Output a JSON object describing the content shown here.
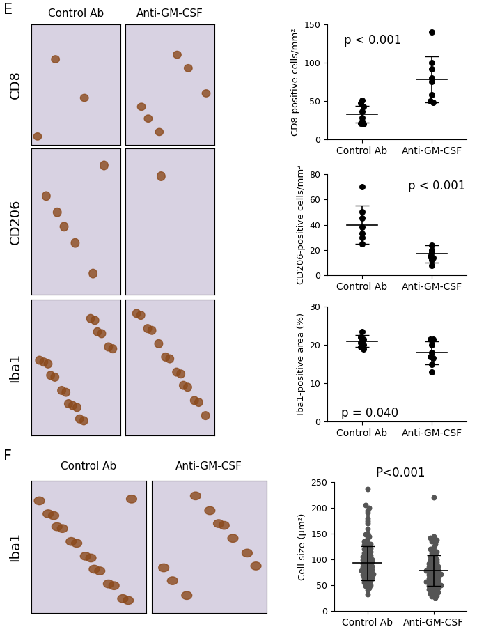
{
  "chart_data": [
    {
      "type": "scatter",
      "panel": "E",
      "ylabel": "CD8-positive cells/mm²",
      "annotation": "p < 0.001",
      "categories": [
        "Control Ab",
        "Anti-GM-CSF"
      ],
      "values": [
        [
          51,
          47,
          43,
          36,
          28,
          24,
          21,
          20
        ],
        [
          140,
          100,
          92,
          80,
          75,
          58,
          50,
          48
        ]
      ],
      "mean": [
        33,
        78
      ],
      "sd": [
        11,
        30
      ],
      "ylim": [
        0,
        150
      ],
      "yticks": [
        0,
        50,
        100,
        150
      ],
      "color": "#000000",
      "marker": "circle"
    },
    {
      "type": "scatter",
      "panel": "E",
      "ylabel": "CD206-positive cells/mm²",
      "annotation": "p < 0.001",
      "categories": [
        "Control Ab",
        "Anti-GM-CSF"
      ],
      "values": [
        [
          70,
          50,
          45,
          38,
          33,
          30,
          25
        ],
        [
          24,
          20,
          18,
          15,
          14,
          12,
          8
        ]
      ],
      "mean": [
        40,
        17
      ],
      "sd": [
        15,
        7
      ],
      "ylim": [
        0,
        80
      ],
      "yticks": [
        0,
        20,
        40,
        60,
        80
      ],
      "color": "#000000",
      "marker": "circle"
    },
    {
      "type": "scatter",
      "panel": "E",
      "ylabel": "Iba1-positive area (%)",
      "annotation": "p = 0.040",
      "categories": [
        "Control Ab",
        "Anti-GM-CSF"
      ],
      "values": [
        [
          23.5,
          22,
          21.5,
          21,
          20.5,
          20,
          19.5,
          19
        ],
        [
          21.5,
          21.5,
          20,
          18,
          17,
          16.5,
          15,
          13
        ]
      ],
      "mean": [
        21,
        18
      ],
      "sd": [
        1.5,
        3
      ],
      "ylim": [
        0,
        30
      ],
      "yticks": [
        0,
        10,
        20,
        30
      ],
      "color": "#000000",
      "marker": "circle"
    },
    {
      "type": "scatter",
      "panel": "F",
      "title": "P<0.001",
      "ylabel": "Cell size (µm²)",
      "categories": [
        "Control Ab",
        "Anti-GM-CSF"
      ],
      "values": [
        [
          237,
          205,
          200,
          195,
          190,
          180,
          175,
          170,
          160,
          150,
          148,
          145,
          140,
          135,
          132,
          130,
          128,
          125,
          122,
          120,
          118,
          115,
          112,
          110,
          108,
          106,
          104,
          102,
          100,
          98,
          96,
          95,
          94,
          92,
          90,
          88,
          86,
          85,
          84,
          82,
          80,
          78,
          76,
          75,
          74,
          72,
          70,
          68,
          66,
          65,
          63,
          60,
          58,
          55,
          52,
          50,
          48,
          45,
          40,
          32
        ],
        [
          220,
          145,
          142,
          140,
          138,
          135,
          130,
          125,
          120,
          118,
          115,
          112,
          110,
          106,
          104,
          100,
          98,
          96,
          94,
          92,
          90,
          88,
          86,
          85,
          84,
          82,
          80,
          78,
          77,
          76,
          75,
          74,
          72,
          70,
          68,
          66,
          65,
          64,
          62,
          60,
          58,
          57,
          56,
          55,
          54,
          52,
          50,
          48,
          46,
          45,
          44,
          42,
          40,
          38,
          36,
          34,
          32,
          30,
          28,
          26
        ]
      ],
      "mean": [
        93,
        78
      ],
      "sd": [
        33,
        30
      ],
      "ylim": [
        0,
        250
      ],
      "yticks": [
        0,
        50,
        100,
        150,
        200,
        250
      ],
      "color": "#555555",
      "marker": "circle"
    }
  ],
  "image_panels": [
    {
      "label": "E",
      "columns": [
        "Control Ab",
        "Anti-GM-CSF"
      ],
      "rows": [
        "CD8",
        "CD206",
        "Iba1"
      ]
    },
    {
      "label": "F",
      "columns": [
        "Control Ab",
        "Anti-GM-CSF"
      ],
      "rows": [
        "Iba1"
      ]
    }
  ]
}
